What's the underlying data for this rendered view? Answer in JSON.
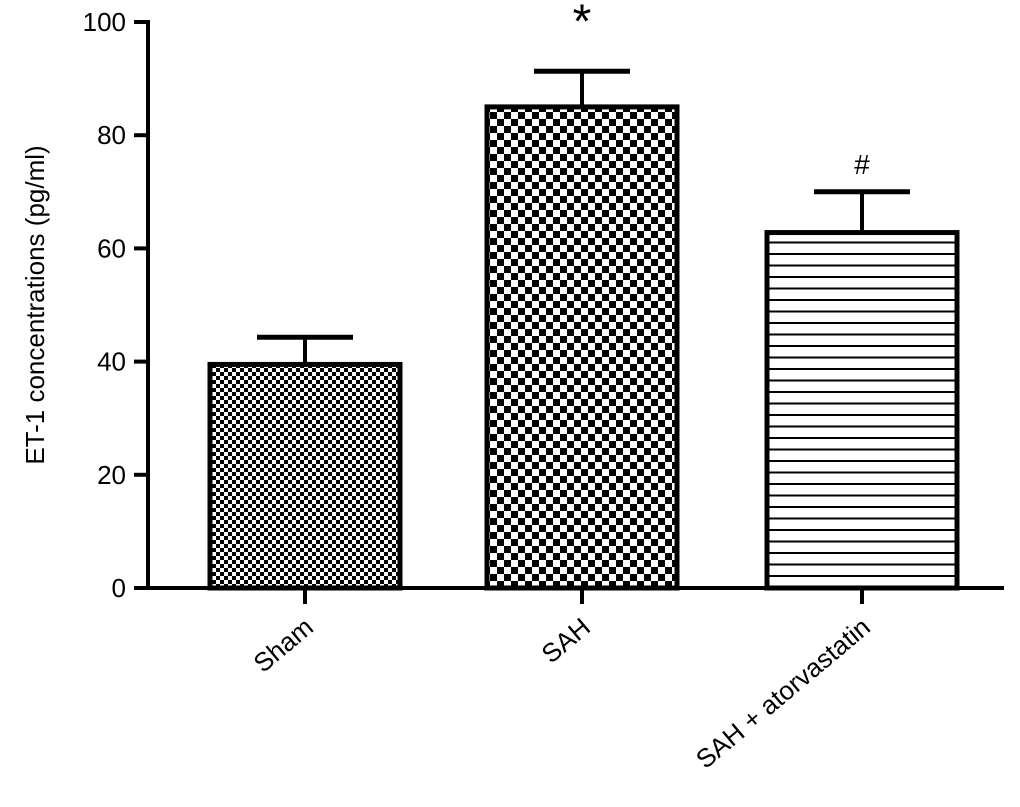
{
  "chart_data": {
    "type": "bar",
    "categories": [
      "Sham",
      "SAH",
      "SAH + atorvastatin"
    ],
    "values": [
      39.5,
      85.0,
      62.8
    ],
    "errors": [
      4.8,
      6.3,
      7.2
    ],
    "annotations": [
      "",
      "*",
      "#"
    ],
    "fill_patterns": [
      "fine-checker",
      "coarse-checker",
      "horizontal-lines"
    ],
    "xlabel": "",
    "ylabel": "ET-1 concentrations (pg/ml)",
    "ylim": [
      0,
      100
    ],
    "yticks": [
      "0",
      "20",
      "40",
      "60",
      "80",
      "100"
    ],
    "grid": false,
    "colors": {
      "stroke": "#000000",
      "background": "#ffffff"
    }
  }
}
